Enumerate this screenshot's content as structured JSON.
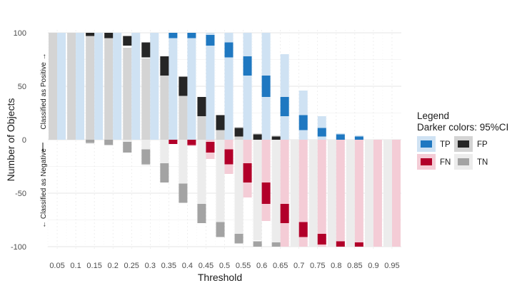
{
  "chart_data": {
    "type": "bar",
    "xlabel": "Threshold",
    "ylabel": "Number of Objects",
    "positive_side_label": "Classified as Positive →",
    "negative_side_label": "← Classified as Negative",
    "ylim": [
      -100,
      100
    ],
    "y_ticks": [
      "-100",
      "-50",
      "0",
      "50",
      "100"
    ],
    "x_tick_labels": [
      "0.05",
      "0.1",
      "0.15",
      "0.2",
      "0.25",
      "0.3",
      "0.35",
      "0.4",
      "0.45",
      "0.5",
      "0.55",
      "0.6",
      "0.65",
      "0.7",
      "0.75",
      "0.8",
      "0.85",
      "0.9",
      "0.95"
    ],
    "grid": true,
    "legend": {
      "position": "right",
      "title": "Legend",
      "subtitle": "Darker colors: 95%CI",
      "items": [
        {
          "label": "TP",
          "light": "#cfe2f3",
          "dark": "#1f78c1"
        },
        {
          "label": "FP",
          "light": "#d4d4d4",
          "dark": "#262626"
        },
        {
          "label": "FN",
          "light": "#f4ccd6",
          "dark": "#b2002a"
        },
        {
          "label": "TN",
          "light": "#ececec",
          "dark": "#a3a3a3"
        }
      ]
    },
    "series": [
      {
        "name": "TP",
        "values": [
          50,
          50,
          50,
          50,
          50,
          50,
          50,
          50,
          50,
          50,
          50,
          50,
          40,
          23,
          11,
          3,
          2,
          0,
          0
        ],
        "ci_low": [
          null,
          null,
          null,
          null,
          null,
          null,
          95,
          95,
          88,
          77,
          60,
          40,
          22,
          9,
          3,
          0,
          0,
          null,
          null
        ],
        "ci_high": [
          null,
          null,
          null,
          null,
          null,
          null,
          100,
          100,
          98,
          91,
          78,
          60,
          40,
          23,
          11,
          5,
          3,
          null,
          null
        ]
      },
      {
        "name": "FP",
        "values": [
          50,
          50,
          49,
          48,
          43,
          38,
          31,
          24,
          16,
          11,
          6,
          3,
          2,
          0,
          0,
          0,
          0,
          0,
          0
        ],
        "ci_low": [
          null,
          null,
          97,
          95,
          88,
          77,
          60,
          41,
          22,
          9,
          3,
          0,
          0,
          null,
          null,
          null,
          null,
          null,
          null
        ],
        "ci_high": [
          null,
          null,
          100,
          100,
          97,
          91,
          78,
          59,
          40,
          23,
          11,
          5,
          3,
          null,
          null,
          null,
          null,
          null,
          null
        ]
      },
      {
        "name": "FN",
        "values": [
          0,
          0,
          0,
          0,
          0,
          0,
          -2,
          -3,
          -9,
          -16,
          -27,
          -38,
          -50,
          -50,
          -50,
          -50,
          -50,
          -50,
          -50
        ],
        "ci_low": [
          null,
          null,
          null,
          null,
          null,
          null,
          -4,
          -5,
          -12,
          -23,
          -40,
          -60,
          -78,
          -91,
          -98,
          -100,
          -100,
          null,
          null
        ],
        "ci_high": [
          null,
          null,
          null,
          null,
          null,
          null,
          0,
          0,
          -2,
          -9,
          -22,
          -40,
          -60,
          -77,
          -88,
          -95,
          -96,
          null,
          null
        ]
      },
      {
        "name": "TN",
        "values": [
          0,
          0,
          -2,
          -2,
          -6,
          -12,
          -19,
          -27,
          -34,
          -39,
          -44,
          -47,
          -49,
          -50,
          -50,
          -50,
          -50,
          -50,
          -50
        ],
        "ci_low": [
          null,
          null,
          -3,
          -5,
          -12,
          -23,
          -40,
          -59,
          -78,
          -91,
          -97,
          -100,
          -100,
          null,
          null,
          null,
          null,
          null,
          null
        ],
        "ci_high": [
          null,
          null,
          0,
          0,
          -2,
          -9,
          -22,
          -41,
          -60,
          -77,
          -88,
          -95,
          -96,
          null,
          null,
          null,
          null,
          null,
          null
        ]
      }
    ]
  }
}
